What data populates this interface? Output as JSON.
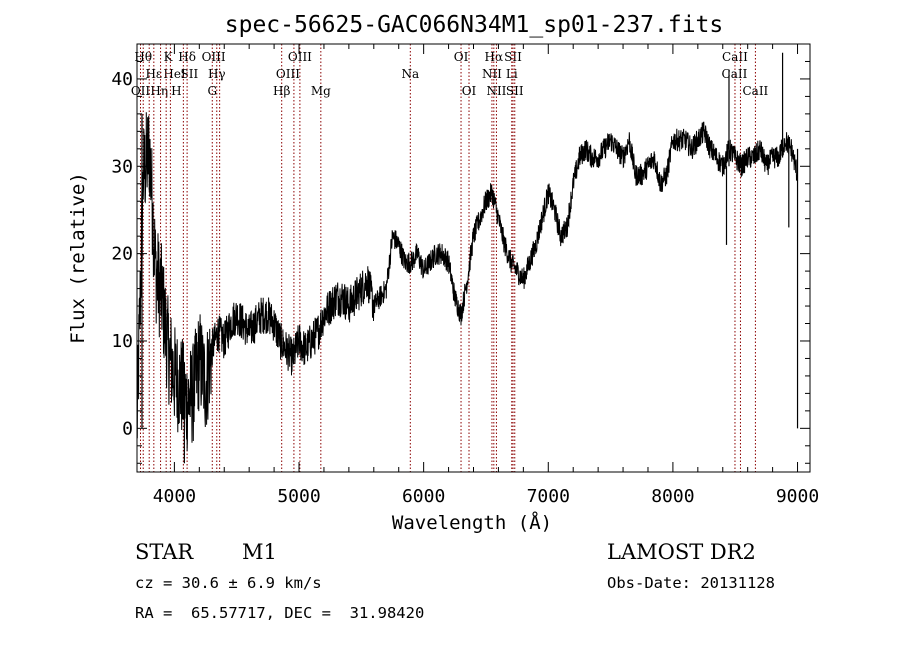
{
  "chart_data": {
    "type": "line",
    "title": "spec-56625-GAC066N34M1_sp01-237.fits",
    "xlabel": "Wavelength (Å)",
    "ylabel": "Flux (relative)",
    "xlim": [
      3700,
      9100
    ],
    "ylim": [
      -5,
      44
    ],
    "xticks": [
      4000,
      5000,
      6000,
      7000,
      8000,
      9000
    ],
    "yticks": [
      0,
      10,
      20,
      30,
      40
    ],
    "xtick_labels": [
      "4000",
      "5000",
      "6000",
      "7000",
      "8000",
      "9000"
    ],
    "ytick_labels": [
      "0",
      "10",
      "20",
      "30",
      "40"
    ],
    "grid": false,
    "line_color": "#000000",
    "marker_color": "#8b0000",
    "series": [
      {
        "x": [
          3700,
          3750,
          3800,
          3850,
          3900,
          3950,
          4000,
          4050,
          4100,
          4150,
          4200,
          4250,
          4300,
          4350,
          4400,
          4450,
          4500,
          4550,
          4600,
          4650,
          4700,
          4750,
          4800,
          4850,
          4900,
          4950,
          5000,
          5050,
          5100,
          5150,
          5200,
          5250,
          5300,
          5350,
          5400,
          5450,
          5500,
          5550,
          5600,
          5650,
          5700,
          5750,
          5800,
          5850,
          5900,
          5950,
          6000,
          6050,
          6100,
          6150,
          6200,
          6250,
          6300,
          6350,
          6400,
          6450,
          6500,
          6550,
          6600,
          6650,
          6700,
          6750,
          6800,
          6850,
          6900,
          6950,
          7000,
          7050,
          7100,
          7150,
          7200,
          7250,
          7300,
          7350,
          7400,
          7450,
          7500,
          7550,
          7600,
          7650,
          7700,
          7750,
          7800,
          7850,
          7900,
          7950,
          8000,
          8050,
          8100,
          8150,
          8200,
          8250,
          8300,
          8350,
          8400,
          8450,
          8500,
          8550,
          8600,
          8650,
          8700,
          8750,
          8800,
          8850,
          8900,
          8950,
          9000
        ],
        "y": [
          0,
          29,
          32,
          18,
          15,
          9,
          6,
          5,
          3,
          4,
          8,
          5,
          9,
          11,
          10,
          12,
          13,
          12,
          11,
          12,
          13,
          13,
          12,
          10,
          9,
          8,
          10,
          9,
          10,
          11,
          13,
          14,
          15,
          15,
          14,
          15,
          16,
          17,
          14,
          15,
          16,
          22,
          21,
          19,
          19,
          20,
          18,
          19,
          20,
          20,
          19,
          15,
          13,
          17,
          22,
          24,
          26,
          27,
          24,
          21,
          19,
          18,
          17,
          19,
          21,
          24,
          27,
          25,
          22,
          23,
          28,
          31,
          32,
          31,
          31,
          32,
          33,
          32,
          31,
          33,
          29,
          29,
          30,
          31,
          28,
          29,
          33,
          33,
          33,
          32,
          33,
          34,
          32,
          31,
          30,
          32,
          31,
          30,
          31,
          31,
          32,
          30,
          31,
          31,
          33,
          32,
          29
        ]
      }
    ],
    "spikes": [
      {
        "x": 3740,
        "y": 36
      },
      {
        "x": 3800,
        "y": 31
      },
      {
        "x": 4080,
        "y": -4
      },
      {
        "x": 8430,
        "y": 21
      },
      {
        "x": 8450,
        "y": 41
      },
      {
        "x": 8880,
        "y": 43
      },
      {
        "x": 8930,
        "y": 23
      },
      {
        "x": 9000,
        "y": 0
      }
    ],
    "line_markers": [
      {
        "x": 3750,
        "label": "Hθ",
        "row": 0,
        "xoff": 0
      },
      {
        "x": 3728,
        "label": "OII",
        "row": 2,
        "xoff": 0
      },
      {
        "x": 3798,
        "label": "Hη",
        "row": 2,
        "xoff": 10
      },
      {
        "x": 3835,
        "label": "Hε",
        "row": 1,
        "xoff": 0
      },
      {
        "x": 3889,
        "label": "HeI",
        "row": 1,
        "xoff": 14
      },
      {
        "x": 3934,
        "label": "K",
        "row": 0,
        "xoff": 2
      },
      {
        "x": 3968,
        "label": "H",
        "row": 2,
        "xoff": 6
      },
      {
        "x": 4072,
        "label": "SII",
        "row": 1,
        "xoff": 6
      },
      {
        "x": 4102,
        "label": "Hδ",
        "row": 0,
        "xoff": 0
      },
      {
        "x": 4304,
        "label": "G",
        "row": 2,
        "xoff": 0
      },
      {
        "x": 4340,
        "label": "Hγ",
        "row": 1,
        "xoff": 0
      },
      {
        "x": 4363,
        "label": "OIII",
        "row": 0,
        "xoff": -6
      },
      {
        "x": 4861,
        "label": "Hβ",
        "row": 2,
        "xoff": 0
      },
      {
        "x": 4959,
        "label": "OIII",
        "row": 1,
        "xoff": -6
      },
      {
        "x": 5007,
        "label": "OIII",
        "row": 0,
        "xoff": 0
      },
      {
        "x": 5175,
        "label": "Mg",
        "row": 2,
        "xoff": 0
      },
      {
        "x": 5893,
        "label": "Na",
        "row": 1,
        "xoff": 0
      },
      {
        "x": 6300,
        "label": "OI",
        "row": 0,
        "xoff": 0
      },
      {
        "x": 6364,
        "label": "OI",
        "row": 2,
        "xoff": 0
      },
      {
        "x": 6548,
        "label": "NII",
        "row": 1,
        "xoff": 0
      },
      {
        "x": 6563,
        "label": "Hα",
        "row": 0,
        "xoff": 0
      },
      {
        "x": 6584,
        "label": "NII",
        "row": 2,
        "xoff": 0
      },
      {
        "x": 6707,
        "label": "Li",
        "row": 1,
        "xoff": 0
      },
      {
        "x": 6717,
        "label": "SII",
        "row": 0,
        "xoff": 0
      },
      {
        "x": 6731,
        "label": "SII",
        "row": 2,
        "xoff": 0
      },
      {
        "x": 8498,
        "label": "CaII",
        "row": 0,
        "xoff": 0
      },
      {
        "x": 8542,
        "label": "CaII",
        "row": 1,
        "xoff": -6
      },
      {
        "x": 8662,
        "label": "CaII",
        "row": 2,
        "xoff": 0
      }
    ]
  },
  "info": {
    "object_class": "STAR",
    "subclass": "M1",
    "survey": "LAMOST DR2",
    "redshift": "cz = 30.6 ± 6.9 km/s",
    "obs_date": "Obs-Date: 20131128",
    "coords": "RA =  65.57717, DEC =  31.98420"
  }
}
